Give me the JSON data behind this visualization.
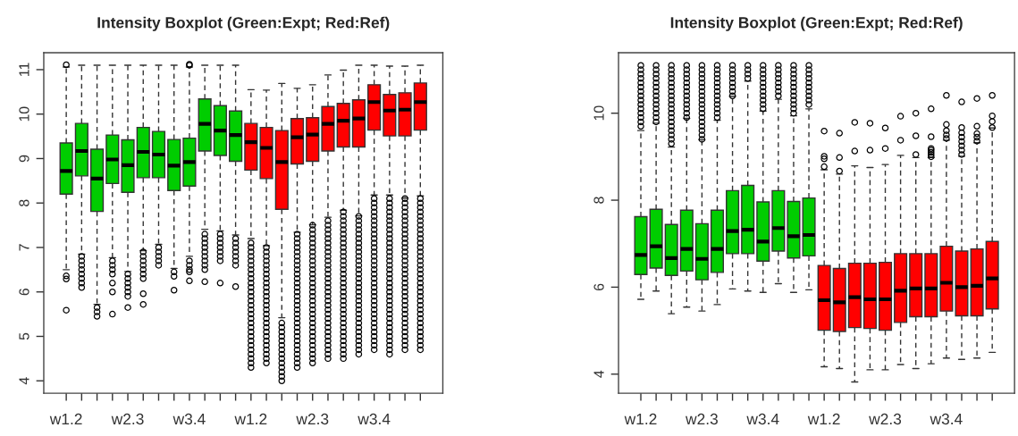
{
  "chart_data": [
    {
      "type": "box",
      "title": "Intensity Boxplot (Green:Expt; Red:Ref)",
      "categories": [
        "w1.2",
        null,
        null,
        null,
        "w2.3",
        null,
        null,
        null,
        "w3.4",
        null,
        null,
        null,
        "w1.2",
        null,
        null,
        null,
        "w2.3",
        null,
        null,
        null,
        "w3.4",
        null,
        null,
        null
      ],
      "colors": [
        "#00cd00",
        "#00cd00",
        "#00cd00",
        "#00cd00",
        "#00cd00",
        "#00cd00",
        "#00cd00",
        "#00cd00",
        "#00cd00",
        "#00cd00",
        "#00cd00",
        "#00cd00",
        "#ff0000",
        "#ff0000",
        "#ff0000",
        "#ff0000",
        "#ff0000",
        "#ff0000",
        "#ff0000",
        "#ff0000",
        "#ff0000",
        "#ff0000",
        "#ff0000",
        "#ff0000"
      ],
      "boxes": [
        {
          "low": 6.5,
          "q1": 8.2,
          "median": 8.72,
          "q3": 9.35,
          "high": 11.06,
          "outliers": [
            11.11,
            6.36,
            6.29,
            5.59
          ]
        },
        {
          "low": 6.85,
          "q1": 8.61,
          "median": 9.17,
          "q3": 9.79,
          "high": 11.1,
          "outliers": [
            6.8,
            6.7,
            6.6,
            6.5,
            6.4,
            6.3,
            6.2,
            6.1
          ]
        },
        {
          "low": 5.72,
          "q1": 7.81,
          "median": 8.55,
          "q3": 9.21,
          "high": 11.1,
          "outliers": [
            5.65,
            5.55,
            5.45
          ]
        },
        {
          "low": 6.77,
          "q1": 8.44,
          "median": 8.98,
          "q3": 9.53,
          "high": 11.1,
          "outliers": [
            6.7,
            6.6,
            6.5,
            6.4,
            6.2,
            6.0,
            5.5
          ]
        },
        {
          "low": 6.46,
          "q1": 8.24,
          "median": 8.85,
          "q3": 9.42,
          "high": 11.1,
          "outliers": [
            6.4,
            6.3,
            6.2,
            6.1,
            6.0,
            5.9,
            5.65
          ]
        },
        {
          "low": 6.93,
          "q1": 8.57,
          "median": 9.15,
          "q3": 9.7,
          "high": 11.1,
          "outliers": [
            6.9,
            6.8,
            6.7,
            6.6,
            6.5,
            6.4,
            6.3,
            5.96,
            5.72
          ]
        },
        {
          "low": 7.07,
          "q1": 8.57,
          "median": 9.09,
          "q3": 9.61,
          "high": 11.1,
          "outliers": [
            7.0,
            6.9,
            6.8,
            6.7,
            6.6
          ]
        },
        {
          "low": 6.53,
          "q1": 8.28,
          "median": 8.84,
          "q3": 9.43,
          "high": 11.1,
          "outliers": [
            6.45,
            6.35,
            6.04
          ]
        },
        {
          "low": 6.8,
          "q1": 8.38,
          "median": 8.92,
          "q3": 9.46,
          "high": 11.06,
          "outliers": [
            11.1,
            11.12,
            6.7,
            6.6,
            6.5,
            6.45,
            6.25
          ]
        },
        {
          "low": 7.41,
          "q1": 9.17,
          "median": 9.78,
          "q3": 10.34,
          "high": 11.1,
          "outliers": [
            7.3,
            7.2,
            7.1,
            7.0,
            6.9,
            6.8,
            6.7,
            6.6,
            6.5,
            6.23
          ]
        },
        {
          "low": 7.37,
          "q1": 9.07,
          "median": 9.63,
          "q3": 10.19,
          "high": 11.1,
          "outliers": [
            7.3,
            7.2,
            7.1,
            7.0,
            6.9,
            6.8,
            6.7,
            6.2
          ]
        },
        {
          "low": 7.28,
          "q1": 8.94,
          "median": 9.53,
          "q3": 10.07,
          "high": 11.1,
          "outliers": [
            7.2,
            7.1,
            7.0,
            6.9,
            6.8,
            6.7,
            6.6,
            6.12
          ]
        },
        {
          "low": 7.2,
          "q1": 8.74,
          "median": 9.37,
          "q3": 9.79,
          "high": 10.55,
          "outliers": [
            7.1,
            7.0,
            6.9,
            6.8,
            6.7,
            6.6,
            6.5,
            6.4,
            6.3,
            6.2,
            6.1,
            6.0,
            5.9,
            5.8,
            5.7,
            5.6,
            5.5,
            5.4,
            5.3,
            5.2,
            5.1,
            5.0,
            4.9,
            4.8,
            4.7,
            4.6,
            4.5,
            4.4,
            4.3
          ]
        },
        {
          "low": 7.04,
          "q1": 8.55,
          "median": 9.24,
          "q3": 9.7,
          "high": 10.54,
          "outliers": [
            7.0,
            6.9,
            6.8,
            6.7,
            6.6,
            6.5,
            6.4,
            6.3,
            6.2,
            6.1,
            6.0,
            5.9,
            5.8,
            5.7,
            5.6,
            5.5,
            5.4,
            5.3,
            5.2,
            5.1,
            5.0,
            4.9,
            4.8,
            4.7,
            4.6,
            4.5,
            4.4
          ]
        },
        {
          "low": 5.42,
          "q1": 7.86,
          "median": 8.92,
          "q3": 9.63,
          "high": 10.69,
          "outliers": [
            5.3,
            5.2,
            5.1,
            5.0,
            4.9,
            4.8,
            4.7,
            4.6,
            4.5,
            4.4,
            4.3,
            4.2,
            4.1,
            4.0
          ]
        },
        {
          "low": 7.34,
          "q1": 8.88,
          "median": 9.48,
          "q3": 9.9,
          "high": 10.58,
          "outliers": [
            7.3,
            7.2,
            7.1,
            7.0,
            6.9,
            6.8,
            6.7,
            6.6,
            6.5,
            6.4,
            6.3,
            6.2,
            6.1,
            6.0,
            5.9,
            5.8,
            5.7,
            5.6,
            5.5,
            5.4,
            5.3,
            5.2,
            5.1,
            5.0,
            4.9,
            4.8,
            4.7,
            4.6,
            4.5,
            4.4,
            4.3
          ]
        },
        {
          "low": 7.51,
          "q1": 8.94,
          "median": 9.54,
          "q3": 9.92,
          "high": 10.66,
          "outliers": [
            7.5,
            7.4,
            7.3,
            7.2,
            7.1,
            7.0,
            6.9,
            6.8,
            6.7,
            6.6,
            6.5,
            6.4,
            6.3,
            6.2,
            6.1,
            6.0,
            5.9,
            5.8,
            5.7,
            5.6,
            5.5,
            5.4,
            5.3,
            5.2,
            5.1,
            5.0,
            4.9,
            4.8,
            4.7,
            4.6,
            4.5,
            4.4
          ]
        },
        {
          "low": 7.68,
          "q1": 9.17,
          "median": 9.78,
          "q3": 10.17,
          "high": 10.88,
          "outliers": [
            7.6,
            7.5,
            7.4,
            7.3,
            7.2,
            7.1,
            7.0,
            6.9,
            6.8,
            6.7,
            6.6,
            6.5,
            6.4,
            6.3,
            6.2,
            6.1,
            6.0,
            5.9,
            5.8,
            5.7,
            5.6,
            5.5,
            5.4,
            5.3,
            5.2,
            5.1,
            5.0,
            4.9,
            4.8,
            4.7,
            4.6,
            4.5
          ]
        },
        {
          "low": 7.84,
          "q1": 9.26,
          "median": 9.85,
          "q3": 10.24,
          "high": 10.99,
          "outliers": [
            7.8,
            7.7,
            7.6,
            7.5,
            7.4,
            7.3,
            7.2,
            7.1,
            7.0,
            6.9,
            6.8,
            6.7,
            6.6,
            6.5,
            6.4,
            6.3,
            6.2,
            6.1,
            6.0,
            5.9,
            5.8,
            5.7,
            5.6,
            5.5,
            5.4,
            5.3,
            5.2,
            5.1,
            5.0,
            4.9,
            4.8,
            4.7,
            4.6,
            4.5
          ]
        },
        {
          "low": 7.71,
          "q1": 9.26,
          "median": 9.9,
          "q3": 10.32,
          "high": 11.1,
          "outliers": [
            7.7,
            7.6,
            7.5,
            7.4,
            7.3,
            7.2,
            7.1,
            7.0,
            6.9,
            6.8,
            6.7,
            6.6,
            6.5,
            6.4,
            6.3,
            6.2,
            6.1,
            6.0,
            5.9,
            5.8,
            5.7,
            5.6,
            5.5,
            5.4,
            5.3,
            5.2,
            5.1,
            5.0,
            4.9,
            4.8,
            4.7,
            4.6
          ]
        },
        {
          "low": 8.18,
          "q1": 9.64,
          "median": 10.27,
          "q3": 10.66,
          "high": 11.1,
          "outliers": [
            8.1,
            8.0,
            7.9,
            7.8,
            7.7,
            7.6,
            7.5,
            7.4,
            7.3,
            7.2,
            7.1,
            7.0,
            6.9,
            6.8,
            6.7,
            6.6,
            6.5,
            6.4,
            6.3,
            6.2,
            6.1,
            6.0,
            5.9,
            5.8,
            5.7,
            5.6,
            5.5,
            5.4,
            5.3,
            5.2,
            5.1,
            5.0,
            4.9,
            4.8,
            4.7
          ]
        },
        {
          "low": 8.18,
          "q1": 9.51,
          "median": 10.08,
          "q3": 10.44,
          "high": 11.08,
          "outliers": [
            8.1,
            8.0,
            7.9,
            7.8,
            7.7,
            7.6,
            7.5,
            7.4,
            7.3,
            7.2,
            7.1,
            7.0,
            6.9,
            6.8,
            6.7,
            6.6,
            6.5,
            6.4,
            6.3,
            6.2,
            6.1,
            6.0,
            5.9,
            5.8,
            5.7,
            5.6,
            5.5,
            5.4,
            5.3,
            5.2,
            5.1,
            5.0,
            4.9,
            4.8,
            4.7,
            4.6
          ]
        },
        {
          "low": 8.11,
          "q1": 9.51,
          "median": 10.1,
          "q3": 10.48,
          "high": 11.08,
          "outliers": [
            8.1,
            8.0,
            7.9,
            7.8,
            7.7,
            7.6,
            7.5,
            7.4,
            7.3,
            7.2,
            7.1,
            7.0,
            6.9,
            6.8,
            6.7,
            6.6,
            6.5,
            6.4,
            6.3,
            6.2,
            6.1,
            6.0,
            5.9,
            5.8,
            5.7,
            5.6,
            5.5,
            5.4,
            5.3,
            5.2,
            5.1,
            5.0,
            4.9,
            4.8,
            4.7
          ]
        },
        {
          "low": 8.16,
          "q1": 9.64,
          "median": 10.27,
          "q3": 10.7,
          "high": 11.1,
          "outliers": [
            8.1,
            8.0,
            7.9,
            7.8,
            7.7,
            7.6,
            7.5,
            7.4,
            7.3,
            7.2,
            7.1,
            7.0,
            6.9,
            6.8,
            6.7,
            6.6,
            6.5,
            6.4,
            6.3,
            6.2,
            6.1,
            6.0,
            5.9,
            5.8,
            5.7,
            5.6,
            5.5,
            5.4,
            5.3,
            5.2,
            5.1,
            5.0,
            4.9,
            4.8,
            4.7
          ]
        }
      ],
      "ylim": [
        3.72,
        11.38
      ],
      "yticks": [
        4,
        5,
        6,
        7,
        8,
        9,
        10,
        11
      ]
    },
    {
      "type": "box",
      "title": "Intensity Boxplot (Green:Expt; Red:Ref)",
      "categories": [
        "w1.2",
        null,
        null,
        null,
        "w2.3",
        null,
        null,
        null,
        "w3.4",
        null,
        null,
        null,
        "w1.2",
        null,
        null,
        null,
        "w2.3",
        null,
        null,
        null,
        "w3.4",
        null,
        null,
        null
      ],
      "colors": [
        "#00cd00",
        "#00cd00",
        "#00cd00",
        "#00cd00",
        "#00cd00",
        "#00cd00",
        "#00cd00",
        "#00cd00",
        "#00cd00",
        "#00cd00",
        "#00cd00",
        "#00cd00",
        "#ff0000",
        "#ff0000",
        "#ff0000",
        "#ff0000",
        "#ff0000",
        "#ff0000",
        "#ff0000",
        "#ff0000",
        "#ff0000",
        "#ff0000",
        "#ff0000",
        "#ff0000"
      ],
      "boxes": [
        {
          "low": 5.72,
          "q1": 6.29,
          "median": 6.74,
          "q3": 7.62,
          "high": 9.6,
          "outliers": [
            9.7,
            9.8,
            9.9,
            10.0,
            10.1,
            10.2,
            10.3,
            10.4,
            10.5,
            10.6,
            10.7,
            10.8,
            10.9,
            11.0,
            11.1
          ]
        },
        {
          "low": 5.91,
          "q1": 6.44,
          "median": 6.94,
          "q3": 7.79,
          "high": 9.77,
          "outliers": [
            9.8,
            9.9,
            10.0,
            10.1,
            10.2,
            10.3,
            10.4,
            10.5,
            10.6,
            10.7,
            10.8,
            10.9,
            11.0,
            11.1
          ]
        },
        {
          "low": 5.39,
          "q1": 6.27,
          "median": 6.67,
          "q3": 7.44,
          "high": 9.22,
          "outliers": [
            9.3,
            9.4,
            9.5,
            9.6,
            9.7,
            9.8,
            9.9,
            10.0,
            10.1,
            10.2,
            10.3,
            10.4,
            10.5,
            10.6,
            10.7,
            10.8,
            10.9,
            11.0,
            11.1
          ]
        },
        {
          "low": 5.54,
          "q1": 6.37,
          "median": 6.88,
          "q3": 7.77,
          "high": 9.88,
          "outliers": [
            9.9,
            10.0,
            10.1,
            10.2,
            10.3,
            10.4,
            10.5,
            10.6,
            10.7,
            10.8,
            10.9,
            11.0,
            11.1
          ]
        },
        {
          "low": 5.45,
          "q1": 6.17,
          "median": 6.65,
          "q3": 7.46,
          "high": 9.39,
          "outliers": [
            9.4,
            9.5,
            9.6,
            9.7,
            9.8,
            9.9,
            10.0,
            10.1,
            10.2,
            10.3,
            10.4,
            10.5,
            10.6,
            10.7,
            10.8,
            10.9,
            11.0,
            11.1
          ]
        },
        {
          "low": 5.6,
          "q1": 6.34,
          "median": 6.88,
          "q3": 7.77,
          "high": 9.84,
          "outliers": [
            9.9,
            10.0,
            10.1,
            10.2,
            10.3,
            10.4,
            10.5,
            10.6,
            10.7,
            10.8,
            10.9,
            11.0,
            11.1
          ]
        },
        {
          "low": 5.96,
          "q1": 6.77,
          "median": 7.29,
          "q3": 8.22,
          "high": 10.39,
          "outliers": [
            10.4,
            10.5,
            10.6,
            10.7,
            10.8,
            10.9,
            11.0,
            11.1
          ]
        },
        {
          "low": 5.91,
          "q1": 6.77,
          "median": 7.32,
          "q3": 8.34,
          "high": 10.74,
          "outliers": [
            10.8,
            10.9,
            11.0,
            11.1
          ]
        },
        {
          "low": 5.88,
          "q1": 6.6,
          "median": 7.05,
          "q3": 7.96,
          "high": 10.05,
          "outliers": [
            10.1,
            10.2,
            10.3,
            10.4,
            10.5,
            10.6,
            10.7,
            10.8,
            10.9,
            11.0,
            11.1
          ]
        },
        {
          "low": 6.08,
          "q1": 6.83,
          "median": 7.36,
          "q3": 8.22,
          "high": 10.32,
          "outliers": [
            10.4,
            10.5,
            10.6,
            10.7,
            10.8,
            10.9,
            11.0,
            11.1
          ]
        },
        {
          "low": 5.88,
          "q1": 6.67,
          "median": 7.17,
          "q3": 7.97,
          "high": 9.94,
          "outliers": [
            10.0,
            10.1,
            10.2,
            10.3,
            10.4,
            10.5,
            10.6,
            10.7,
            10.8,
            10.9,
            11.0,
            11.1
          ]
        },
        {
          "low": 5.94,
          "q1": 6.72,
          "median": 7.2,
          "q3": 8.05,
          "high": 10.1,
          "outliers": [
            10.2,
            10.3,
            10.4,
            10.5,
            10.6,
            10.7,
            10.8,
            10.9,
            11.0,
            11.1
          ]
        },
        {
          "low": 4.17,
          "q1": 5.01,
          "median": 5.7,
          "q3": 6.5,
          "high": 8.7,
          "outliers": [
            8.77,
            8.95,
            9.01,
            9.59
          ]
        },
        {
          "low": 4.13,
          "q1": 4.98,
          "median": 5.65,
          "q3": 6.43,
          "high": 8.6,
          "outliers": [
            8.67,
            8.98,
            9.54
          ]
        },
        {
          "low": 3.82,
          "q1": 5.07,
          "median": 5.77,
          "q3": 6.55,
          "high": 8.79,
          "outliers": [
            9.13,
            9.79
          ]
        },
        {
          "low": 4.1,
          "q1": 5.05,
          "median": 5.72,
          "q3": 6.55,
          "high": 8.75,
          "outliers": [
            9.15,
            9.77
          ]
        },
        {
          "low": 4.1,
          "q1": 5.01,
          "median": 5.72,
          "q3": 6.57,
          "high": 8.82,
          "outliers": [
            9.19,
            9.66
          ]
        },
        {
          "low": 4.22,
          "q1": 5.19,
          "median": 5.92,
          "q3": 6.77,
          "high": 9.03,
          "outliers": [
            9.38,
            9.93
          ]
        },
        {
          "low": 4.13,
          "q1": 5.32,
          "median": 5.97,
          "q3": 6.77,
          "high": 8.98,
          "outliers": [
            9.05,
            9.48,
            10.0
          ]
        },
        {
          "low": 4.24,
          "q1": 5.32,
          "median": 5.97,
          "q3": 6.77,
          "high": 8.98,
          "outliers": [
            9.0,
            9.05,
            9.1,
            9.15,
            9.19,
            9.46,
            10.1
          ]
        },
        {
          "low": 4.37,
          "q1": 5.45,
          "median": 6.1,
          "q3": 6.94,
          "high": 9.38,
          "outliers": [
            9.42,
            9.5,
            9.6,
            9.74,
            10.41
          ]
        },
        {
          "low": 4.34,
          "q1": 5.34,
          "median": 6.0,
          "q3": 6.83,
          "high": 9.01,
          "outliers": [
            9.05,
            9.15,
            9.25,
            9.35,
            9.45,
            9.55,
            9.67,
            10.26
          ]
        },
        {
          "low": 4.37,
          "q1": 5.34,
          "median": 6.03,
          "q3": 6.88,
          "high": 9.32,
          "outliers": [
            9.36,
            9.45,
            9.53,
            9.7,
            10.34
          ]
        },
        {
          "low": 4.5,
          "q1": 5.5,
          "median": 6.2,
          "q3": 7.05,
          "high": 9.66,
          "outliers": [
            9.67,
            9.81,
            9.94,
            10.41
          ]
        }
      ],
      "ylim": [
        3.56,
        11.39
      ],
      "yticks": [
        4,
        6,
        8,
        10
      ]
    }
  ]
}
